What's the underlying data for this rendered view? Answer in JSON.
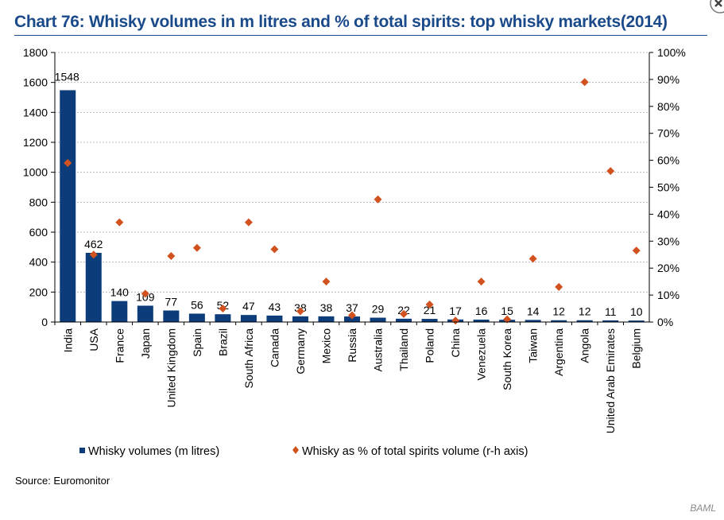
{
  "title": "Chart 76: Whisky volumes in m litres and % of total spirits: top whisky markets(2014)",
  "source": "Source: Euromonitor",
  "watermark": "BAML",
  "icons": {
    "close": "close-icon"
  },
  "colors": {
    "bar": "#0c3c7a",
    "dot": "#d2521f",
    "title": "#1a4a8a"
  },
  "chart_data": {
    "type": "bar",
    "title": "Chart 76: Whisky volumes in m litres and % of total spirits: top whisky markets(2014)",
    "categories": [
      "India",
      "USA",
      "France",
      "Japan",
      "United Kingdom",
      "Spain",
      "Brazil",
      "South Africa",
      "Canada",
      "Germany",
      "Mexico",
      "Russia",
      "Australia",
      "Thailand",
      "Poland",
      "China",
      "Venezuela",
      "South Korea",
      "Taiwan",
      "Argentina",
      "Angola",
      "United Arab Emirates",
      "Belgium"
    ],
    "series": [
      {
        "name": "Whisky volumes (m litres)",
        "type": "bar",
        "axis": "left",
        "values": [
          1548,
          462,
          140,
          109,
          77,
          56,
          52,
          47,
          43,
          38,
          38,
          37,
          29,
          22,
          21,
          17,
          16,
          15,
          14,
          12,
          12,
          11,
          10
        ]
      },
      {
        "name": "Whisky as % of total spirits volume (r-h axis)",
        "type": "scatter",
        "axis": "right",
        "values": [
          59,
          25,
          37,
          10.5,
          24.5,
          27.5,
          5,
          37,
          27,
          4,
          15,
          2.5,
          45.5,
          3,
          6.5,
          0.5,
          15,
          1,
          23.5,
          13,
          89,
          56,
          26.5
        ]
      }
    ],
    "data_labels": [
      "1548",
      "462",
      "140",
      "109",
      "77",
      "56",
      "52",
      "47",
      "43",
      "38",
      "38",
      "37",
      "29",
      "22",
      "21",
      "17",
      "16",
      "15",
      "14",
      "12",
      "12",
      "11",
      "10"
    ],
    "ylim": [
      0,
      1800
    ],
    "yticks": [
      "0",
      "200",
      "400",
      "600",
      "800",
      "1000",
      "1200",
      "1400",
      "1600",
      "1800"
    ],
    "y2lim": [
      0,
      100
    ],
    "y2ticks": [
      "0%",
      "10%",
      "20%",
      "30%",
      "40%",
      "50%",
      "60%",
      "70%",
      "80%",
      "90%",
      "100%"
    ],
    "xlabel": "",
    "ylabel": "",
    "y2label": "",
    "grid": true,
    "legend": "bottom"
  }
}
